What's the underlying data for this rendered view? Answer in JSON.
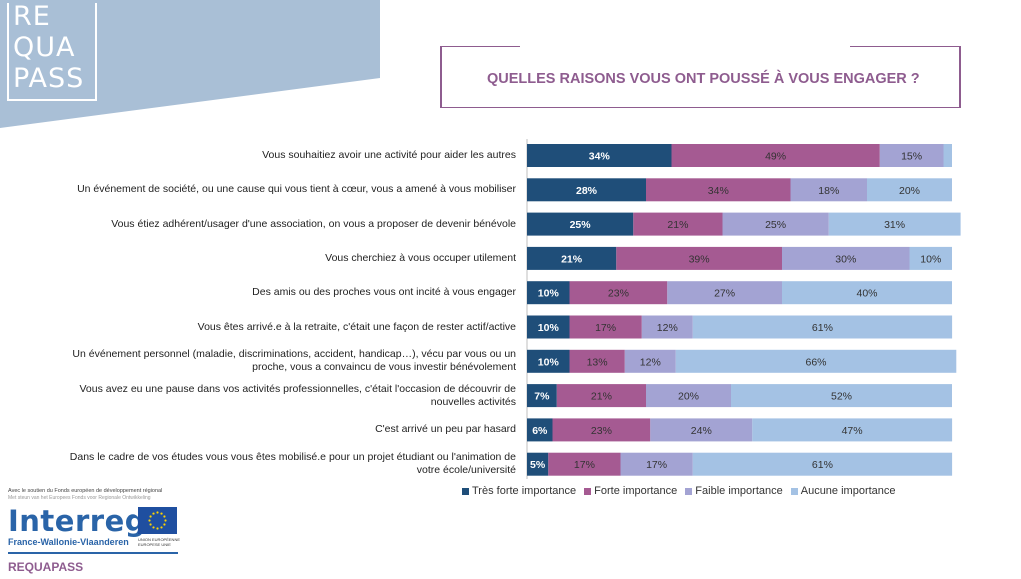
{
  "brand": {
    "logo_lines": [
      "RE",
      "QUA",
      "PASS"
    ],
    "funding_text": "Avec le soutien du Fonds européen de développement régional",
    "funding_text_nl": "Met steun van het Europees Fonds voor Regionale Ontwikkeling",
    "program_logo_word": "Interreg",
    "program_region": "France-Wallonie-Vlaanderen",
    "eu_caption": "UNION EUROPÉENNE EUROPESE UNIE",
    "project_name": "REQUAPASS"
  },
  "colors": {
    "band": "#a9bfd6",
    "frame": "#8e5c8f",
    "series": [
      "#1f4e79",
      "#a55a92",
      "#a3a3d3",
      "#a4c2e4"
    ]
  },
  "chart_data": {
    "type": "bar",
    "orientation": "horizontal",
    "stacked": true,
    "title": "QUELLES RAISONS VOUS ONT POUSSÉ À VOUS ENGAGER ?",
    "xlim": [
      0,
      100
    ],
    "grid": false,
    "legend": "bottom",
    "categories": [
      "Vous souhaitiez avoir une activité pour aider les autres",
      "Un événement de société, ou une cause qui vous tient à cœur, vous a amené à vous mobiliser",
      "Vous étiez adhérent/usager d'une association, on vous a proposer de devenir bénévole",
      "Vous cherchiez à vous occuper utilement",
      "Des amis ou des proches vous ont incité à vous engager",
      "Vous êtes arrivé.e à la retraite, c'était une façon de rester actif/active",
      "Un événement personnel (maladie, discriminations, accident, handicap…), vécu par vous ou un proche, vous a convaincu de vous investir bénévolement",
      "Vous avez eu une pause dans vos activités professionnelles, c'était l'occasion de découvrir de nouvelles activités",
      "C'est arrivé un peu par hasard",
      "Dans le cadre de vos études vous vous êtes mobilisé.e pour un projet étudiant ou l'animation de votre école/université"
    ],
    "series": [
      {
        "name": "Très forte importance",
        "values": [
          34,
          28,
          25,
          21,
          10,
          10,
          10,
          7,
          6,
          5
        ]
      },
      {
        "name": "Forte importance",
        "values": [
          49,
          34,
          21,
          39,
          23,
          17,
          13,
          21,
          23,
          17
        ]
      },
      {
        "name": "Faible importance",
        "values": [
          15,
          18,
          25,
          30,
          27,
          12,
          12,
          20,
          24,
          17
        ]
      },
      {
        "name": "Aucune importance",
        "values": [
          2,
          20,
          31,
          10,
          40,
          61,
          66,
          52,
          47,
          61
        ]
      }
    ],
    "data_labels": [
      [
        "34%",
        "49%",
        "15%",
        ""
      ],
      [
        "28%",
        "34%",
        "18%",
        "20%"
      ],
      [
        "25%",
        "21%",
        "25%",
        "31%"
      ],
      [
        "21%",
        "39%",
        "30%",
        "10%"
      ],
      [
        "10%",
        "23%",
        "27%",
        "40%"
      ],
      [
        "10%",
        "17%",
        "12%",
        "61%"
      ],
      [
        "10%",
        "13%",
        "12%",
        "66%"
      ],
      [
        "7%",
        "21%",
        "20%",
        "52%"
      ],
      [
        "6%",
        "23%",
        "24%",
        "47%"
      ],
      [
        "5%",
        "17%",
        "17%",
        "61%"
      ]
    ]
  }
}
